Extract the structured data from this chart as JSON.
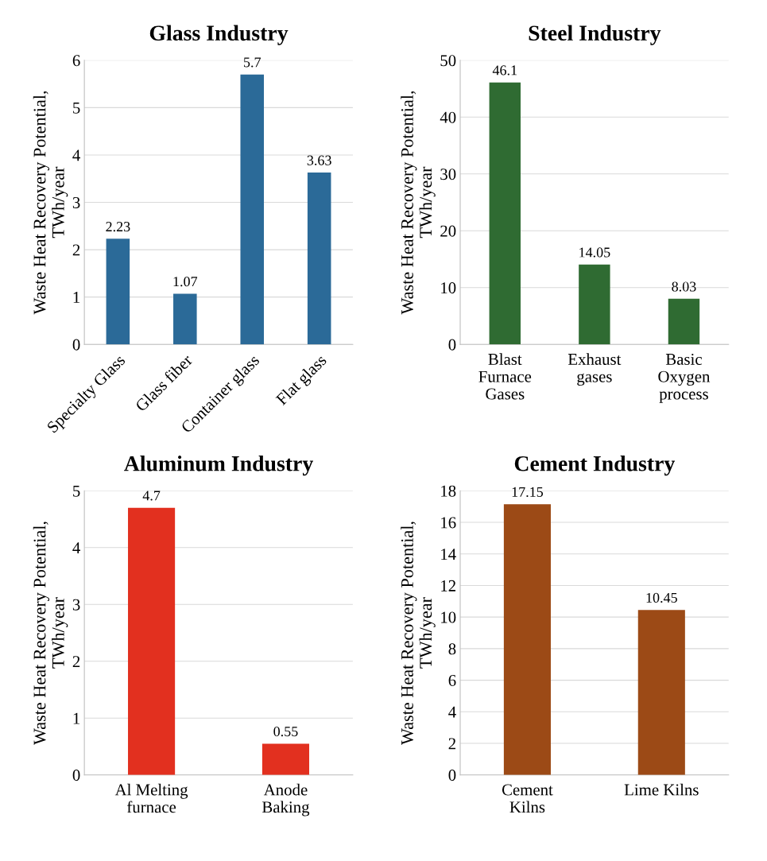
{
  "chart_data": [
    {
      "type": "bar",
      "title": "Glass Industry",
      "ylabel": "Waste Heat Recovery Potential,\nTWh/year",
      "categories": [
        "Specialty Glass",
        "Glass fiber",
        "Container glass",
        "Flat glass"
      ],
      "values": [
        2.23,
        1.07,
        5.7,
        3.63
      ],
      "color": "#2b6a98",
      "ylim": [
        0,
        6
      ],
      "yticks": [
        0,
        1,
        2,
        3,
        4,
        5,
        6
      ],
      "grid": "y",
      "data_labels": true,
      "legend": false
    },
    {
      "type": "bar",
      "title": "Steel Industry",
      "ylabel": "Waste Heat Recovery Potential,\nTWh/year",
      "categories": [
        "Blast\nFurnace\nGases",
        "Exhaust\ngases",
        "Basic\nOxygen\nprocess"
      ],
      "values": [
        46.1,
        14.05,
        8.03
      ],
      "color": "#2f6b32",
      "ylim": [
        0,
        50
      ],
      "yticks": [
        0,
        10,
        20,
        30,
        40,
        50
      ],
      "grid": "y",
      "data_labels": true,
      "legend": false
    },
    {
      "type": "bar",
      "title": "Aluminum Industry",
      "ylabel": "Waste Heat Recovery Potential,\nTWh/year",
      "categories": [
        "Al Melting\nfurnace",
        "Anode\nBaking"
      ],
      "values": [
        4.7,
        0.55
      ],
      "color": "#e2301f",
      "ylim": [
        0,
        5
      ],
      "yticks": [
        0,
        1,
        2,
        3,
        4,
        5
      ],
      "grid": "y",
      "data_labels": true,
      "legend": false
    },
    {
      "type": "bar",
      "title": "Cement Industry",
      "ylabel": "Waste Heat Recovery Potential,\nTWh/year",
      "categories": [
        "Cement\nKilns",
        "Lime Kilns"
      ],
      "values": [
        17.15,
        10.45
      ],
      "color": "#9c4a16",
      "ylim": [
        0,
        18
      ],
      "yticks": [
        0,
        2,
        4,
        6,
        8,
        10,
        12,
        14,
        16,
        18
      ],
      "grid": "y",
      "data_labels": true,
      "legend": false
    }
  ]
}
